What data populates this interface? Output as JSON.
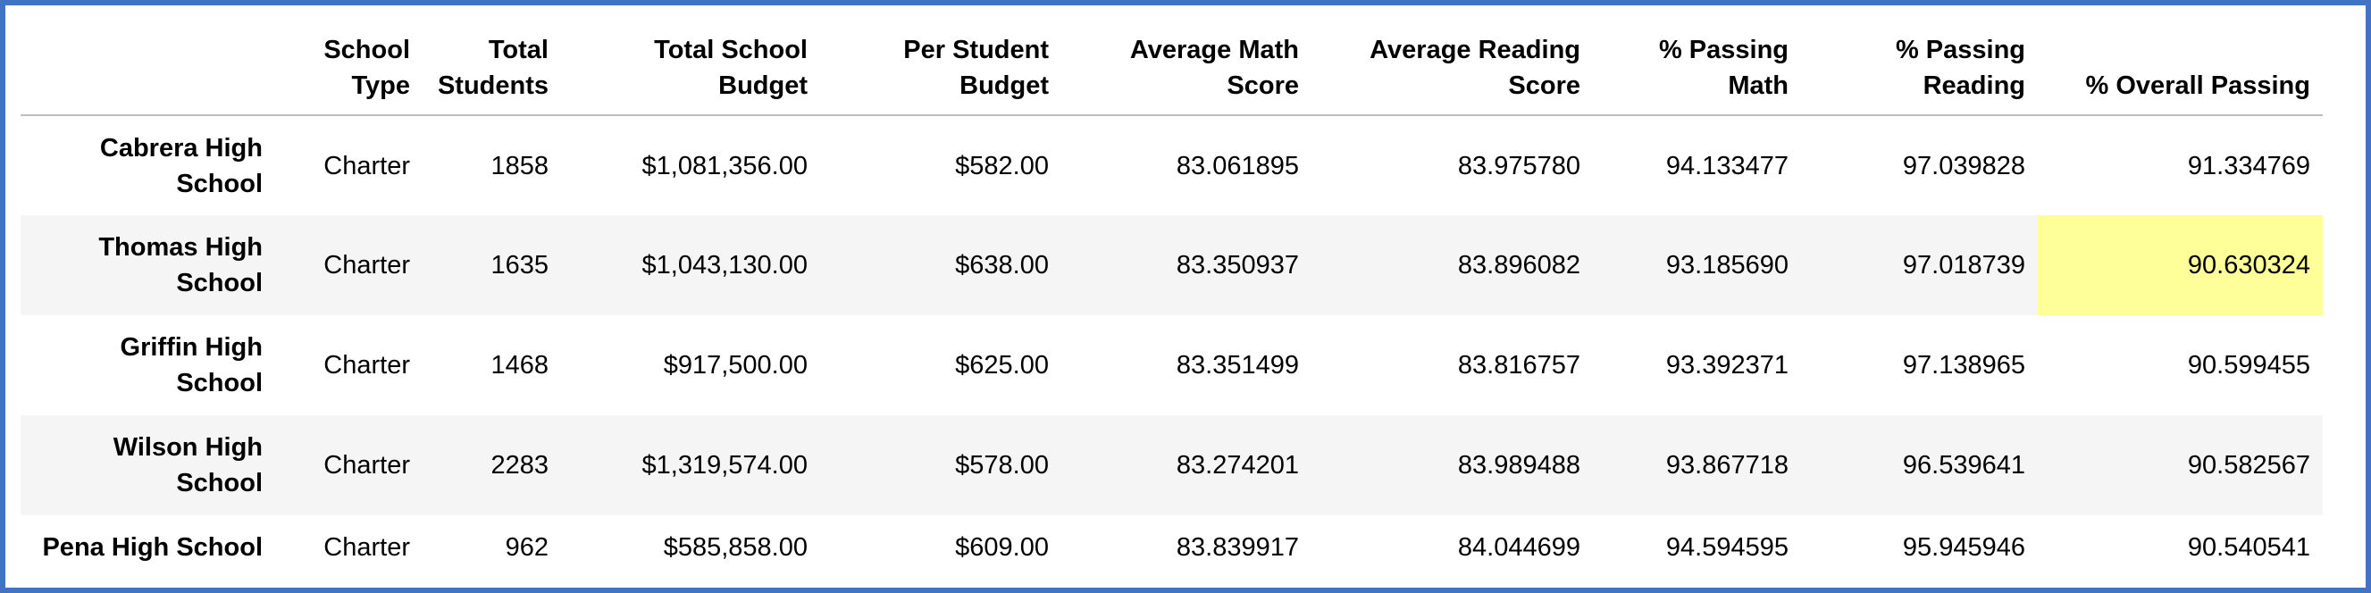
{
  "table": {
    "columns": [
      "",
      "School Type",
      "Total Students",
      "Total School Budget",
      "Per Student Budget",
      "Average Math Score",
      "Average Reading Score",
      "% Passing Math",
      "% Passing Reading",
      "% Overall Passing"
    ],
    "rows": [
      {
        "school": "Cabrera High School",
        "type": "Charter",
        "students": "1858",
        "budget": "$1,081,356.00",
        "per_student": "$582.00",
        "avg_math": "83.061895",
        "avg_reading": "83.975780",
        "pct_math": "94.133477",
        "pct_reading": "97.039828",
        "pct_overall": "91.334769"
      },
      {
        "school": "Thomas High School",
        "type": "Charter",
        "students": "1635",
        "budget": "$1,043,130.00",
        "per_student": "$638.00",
        "avg_math": "83.350937",
        "avg_reading": "83.896082",
        "pct_math": "93.185690",
        "pct_reading": "97.018739",
        "pct_overall": "90.630324"
      },
      {
        "school": "Griffin High School",
        "type": "Charter",
        "students": "1468",
        "budget": "$917,500.00",
        "per_student": "$625.00",
        "avg_math": "83.351499",
        "avg_reading": "83.816757",
        "pct_math": "93.392371",
        "pct_reading": "97.138965",
        "pct_overall": "90.599455"
      },
      {
        "school": "Wilson High School",
        "type": "Charter",
        "students": "2283",
        "budget": "$1,319,574.00",
        "per_student": "$578.00",
        "avg_math": "83.274201",
        "avg_reading": "83.989488",
        "pct_math": "93.867718",
        "pct_reading": "96.539641",
        "pct_overall": "90.582567"
      },
      {
        "school": "Pena High School",
        "type": "Charter",
        "students": "962",
        "budget": "$585,858.00",
        "per_student": "$609.00",
        "avg_math": "83.839917",
        "avg_reading": "84.044699",
        "pct_math": "94.594595",
        "pct_reading": "95.945946",
        "pct_overall": "90.540541"
      }
    ],
    "highlight": {
      "row": 1,
      "column": "pct_overall",
      "color": "#ffff99"
    }
  },
  "colors": {
    "frame_border": "#4472c4",
    "stripe": "#f5f5f5",
    "header_rule": "#bdbdbd"
  }
}
